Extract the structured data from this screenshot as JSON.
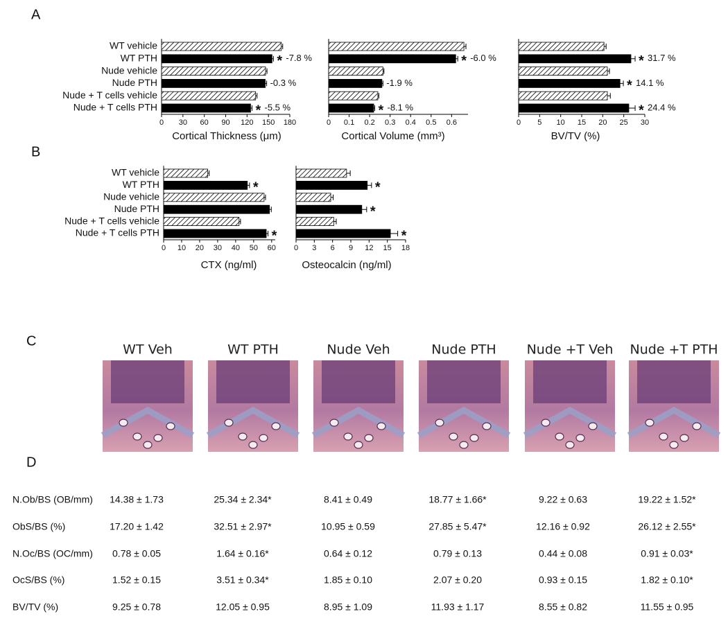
{
  "panels": [
    "A",
    "B",
    "C",
    "D"
  ],
  "chart_data": [
    {
      "type": "hbar",
      "x_label": "Cortical Thickness (μm)",
      "categories": [
        "WT vehicle",
        "WT PTH",
        "Nude vehicle",
        "Nude  PTH",
        "Nude + T cells vehicle",
        "Nude + T cells  PTH"
      ],
      "values": [
        168,
        155,
        146,
        145.5,
        132,
        125
      ],
      "errors": [
        2,
        2,
        2,
        2,
        2,
        2
      ],
      "fills": [
        "hatched",
        "black",
        "hatched",
        "black",
        "hatched",
        "black"
      ],
      "significance": [
        null,
        "*",
        null,
        null,
        null,
        "*"
      ],
      "changes": [
        null,
        "-7.8 %",
        null,
        "-0.3 %",
        null,
        "-5.5 %"
      ],
      "xlim": [
        0,
        180
      ],
      "xticks": [
        0,
        30,
        60,
        90,
        120,
        150,
        180
      ]
    },
    {
      "type": "hbar",
      "x_label": "Cortical Volume (mm³)",
      "values": [
        0.66,
        0.62,
        0.265,
        0.26,
        0.24,
        0.22
      ],
      "errors": [
        0.01,
        0.01,
        0.005,
        0.005,
        0.005,
        0.005
      ],
      "fills": [
        "hatched",
        "black",
        "hatched",
        "black",
        "hatched",
        "black"
      ],
      "significance": [
        null,
        "*",
        null,
        null,
        null,
        "*"
      ],
      "changes": [
        null,
        "-6.0 %",
        null,
        "-1.9 %",
        null,
        "-8.1 %"
      ],
      "xlim": [
        0,
        0.68
      ],
      "xticks": [
        0,
        0.1,
        0.2,
        0.3,
        0.4,
        0.5,
        0.6
      ]
    },
    {
      "type": "hbar",
      "x_label": "BV/TV (%)",
      "values": [
        20.3,
        26.7,
        21.1,
        24.1,
        21.1,
        26.2
      ],
      "errors": [
        0.5,
        1,
        0.5,
        0.8,
        0.7,
        1.5
      ],
      "fills": [
        "hatched",
        "black",
        "hatched",
        "black",
        "hatched",
        "black"
      ],
      "significance": [
        null,
        "*",
        null,
        "*",
        null,
        "*"
      ],
      "changes": [
        null,
        "31.7 %",
        null,
        "14.1 %",
        null,
        "24.4 %"
      ],
      "xlim": [
        0,
        30
      ],
      "xticks": [
        0,
        5,
        10,
        15,
        20,
        25,
        30
      ]
    },
    {
      "type": "hbar",
      "x_label": "CTX (ng/ml)",
      "categories": [
        "WT vehicle",
        "WT PTH",
        "Nude vehicle",
        "Nude  PTH",
        "Nude + T cells vehicle",
        "Nude + T cells  PTH"
      ],
      "values": [
        24.5,
        46.5,
        55.8,
        58.8,
        41.9,
        57
      ],
      "errors": [
        0.8,
        1.2,
        0.8,
        1,
        0.8,
        1
      ],
      "fills": [
        "hatched",
        "black",
        "hatched",
        "black",
        "hatched",
        "black"
      ],
      "significance": [
        null,
        "*",
        null,
        null,
        null,
        "*"
      ],
      "xlim": [
        0,
        62
      ],
      "xticks": [
        0,
        10,
        20,
        30,
        40,
        50,
        60
      ]
    },
    {
      "type": "hbar",
      "x_label": "Osteocalcin (ng/ml)",
      "values": [
        8.3,
        11.7,
        5.7,
        10.8,
        6.2,
        15.5
      ],
      "errors": [
        0.6,
        0.7,
        0.4,
        0.8,
        0.4,
        1.2
      ],
      "fills": [
        "hatched",
        "black",
        "hatched",
        "black",
        "hatched",
        "black"
      ],
      "significance": [
        null,
        "*",
        null,
        "*",
        null,
        "*"
      ],
      "xlim": [
        0,
        18
      ],
      "xticks": [
        0,
        3,
        6,
        9,
        12,
        15,
        18
      ]
    }
  ],
  "histology": [
    "WT Veh",
    "WT PTH",
    "Nude Veh",
    "Nude PTH",
    "Nude +T Veh",
    "Nude +T PTH"
  ],
  "table": {
    "rows": [
      [
        "N.Ob/BS (OB/mm)",
        "14.38 ± 1.73",
        "25.34 ± 2.34*",
        "8.41 ± 0.49",
        "18.77 ± 1.66*",
        "9.22 ± 0.63",
        "19.22 ± 1.52*"
      ],
      [
        "ObS/BS (%)",
        "17.20 ± 1.42",
        "32.51 ± 2.97*",
        "10.95 ± 0.59",
        "27.85 ± 5.47*",
        "12.16 ± 0.92",
        "26.12 ± 2.55*"
      ],
      [
        "N.Oc/BS (OC/mm)",
        "0.78 ± 0.05",
        "1.64 ± 0.16*",
        "0.64 ± 0.12",
        "0.79 ± 0.13",
        "0.44 ± 0.08",
        "0.91 ± 0.03*"
      ],
      [
        "OcS/BS (%)",
        "1.52 ± 0.15",
        "3.51 ± 0.34*",
        "1.85 ± 0.10",
        "2.07 ± 0.20",
        "0.93 ± 0.15",
        "1.82 ± 0.10*"
      ],
      [
        "BV/TV (%)",
        "9.25 ± 0.78",
        "12.05 ± 0.95",
        "8.95 ± 1.09",
        "11.93 ± 1.17",
        "8.55 ± 0.82",
        "11.55 ± 0.95"
      ]
    ]
  }
}
